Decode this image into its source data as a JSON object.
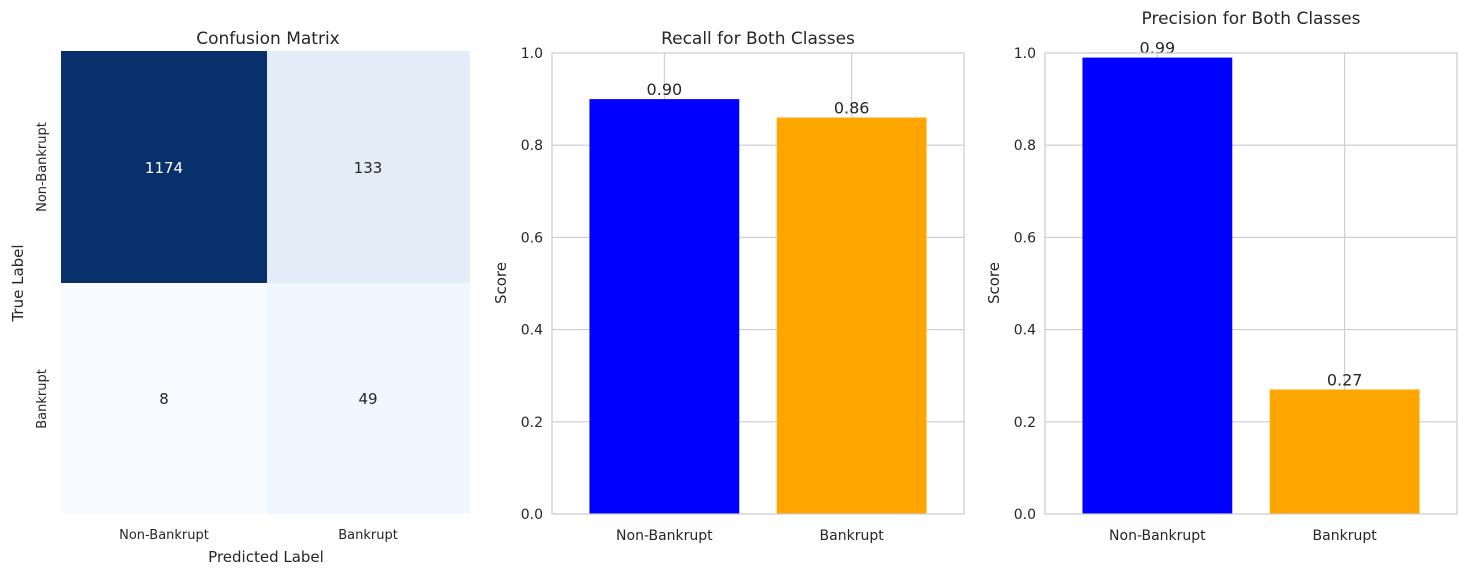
{
  "chart_data": [
    {
      "type": "heatmap",
      "title": "Confusion Matrix",
      "xlabel": "Predicted Label",
      "ylabel": "True Label",
      "x_categories": [
        "Non-Bankrupt",
        "Bankrupt"
      ],
      "y_categories": [
        "Non-Bankrupt",
        "Bankrupt"
      ],
      "values": [
        [
          1174,
          133
        ],
        [
          8,
          49
        ]
      ],
      "colormap": "Blues",
      "grid": false
    },
    {
      "type": "bar",
      "title": "Recall for Both Classes",
      "categories": [
        "Non-Bankrupt",
        "Bankrupt"
      ],
      "values": [
        0.9,
        0.86
      ],
      "data_labels": [
        "0.90",
        "0.86"
      ],
      "bar_colors": [
        "#0000ff",
        "#ffa500"
      ],
      "xlabel": "",
      "ylabel": "Score",
      "ylim": [
        0,
        1.0
      ],
      "yticks": [
        "0.0",
        "0.2",
        "0.4",
        "0.6",
        "0.8",
        "1.0"
      ],
      "grid": true
    },
    {
      "type": "bar",
      "title": "Precision for Both Classes",
      "categories": [
        "Non-Bankrupt",
        "Bankrupt"
      ],
      "values": [
        0.99,
        0.27
      ],
      "data_labels": [
        "0.99",
        "0.27"
      ],
      "bar_colors": [
        "#0000ff",
        "#ffa500"
      ],
      "xlabel": "",
      "ylabel": "Score",
      "ylim": [
        0,
        1.0
      ],
      "yticks": [
        "0.0",
        "0.2",
        "0.4",
        "0.6",
        "0.8",
        "1.0"
      ],
      "grid": true
    }
  ]
}
